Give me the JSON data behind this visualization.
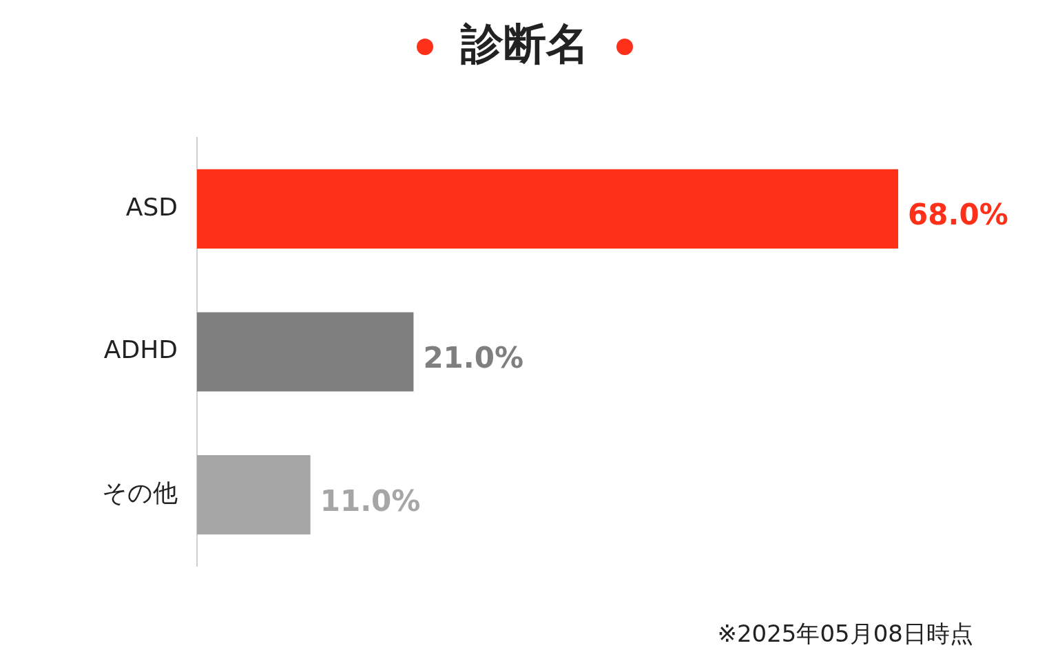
{
  "chart_data": {
    "type": "bar",
    "orientation": "horizontal",
    "title": "診断名",
    "categories": [
      "ASD",
      "ADHD",
      "その他"
    ],
    "values": [
      68.0,
      21.0,
      11.0
    ],
    "colors": [
      "#ff3019",
      "#7f7f7f",
      "#a6a6a6"
    ],
    "value_labels": [
      "68.0%",
      "21.0%",
      "11.0%"
    ],
    "annotations": [
      "※2025年05月08日時点"
    ]
  }
}
